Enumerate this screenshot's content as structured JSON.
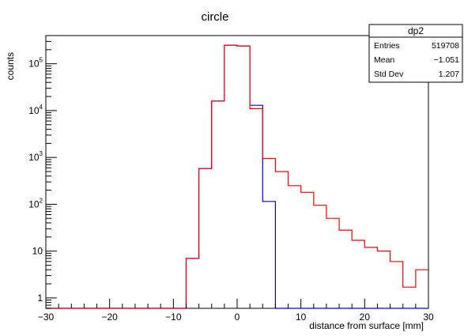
{
  "chart_data": {
    "type": "histogram",
    "title": "circle",
    "xlabel": "distance from surface [mm]",
    "ylabel": "counts",
    "xlim": [
      -30,
      30
    ],
    "ylim": [
      0.6,
      400000
    ],
    "yscale": "log",
    "grid": false,
    "bin_edges": [
      -30,
      -28,
      -26,
      -24,
      -22,
      -20,
      -18,
      -16,
      -14,
      -12,
      -10,
      -8,
      -6,
      -4,
      -2,
      0,
      2,
      4,
      6,
      8,
      10,
      12,
      14,
      16,
      18,
      20,
      22,
      24,
      26,
      28,
      30
    ],
    "x_ticks": [
      {
        "value": -30,
        "label": "−30"
      },
      {
        "value": -20,
        "label": "−20"
      },
      {
        "value": -10,
        "label": "−10"
      },
      {
        "value": 0,
        "label": "0"
      },
      {
        "value": 10,
        "label": "10"
      },
      {
        "value": 20,
        "label": "20"
      },
      {
        "value": 30,
        "label": "30"
      }
    ],
    "y_ticks": [
      {
        "value": 1,
        "label": "1"
      },
      {
        "value": 10,
        "label": "10"
      },
      {
        "value": 100,
        "base": "10",
        "exp": "2"
      },
      {
        "value": 1000,
        "base": "10",
        "exp": "3"
      },
      {
        "value": 10000,
        "base": "10",
        "exp": "4"
      },
      {
        "value": 100000,
        "base": "10",
        "exp": "5"
      }
    ],
    "series": [
      {
        "color": "#0000ff",
        "values": [
          0,
          0,
          0,
          0,
          0,
          0,
          0,
          0,
          0,
          0,
          0,
          7,
          580,
          16000,
          250000,
          240000,
          13000,
          115,
          0,
          0,
          0,
          0,
          0,
          0,
          0,
          0,
          0,
          0,
          0,
          0
        ]
      },
      {
        "color": "#ff0000",
        "values": [
          0,
          0,
          0,
          0,
          0,
          0,
          0,
          0,
          0,
          0,
          0,
          7,
          580,
          16000,
          250000,
          240000,
          11000,
          950,
          500,
          250,
          180,
          95,
          50,
          28,
          17,
          12,
          10,
          6,
          1.7,
          4
        ]
      }
    ],
    "stats_box": {
      "name": "dp2",
      "rows": [
        {
          "label": "Entries",
          "value": "519708"
        },
        {
          "label": "Mean",
          "value": "−1.051"
        },
        {
          "label": "Std Dev",
          "value": "1.207"
        }
      ]
    }
  }
}
